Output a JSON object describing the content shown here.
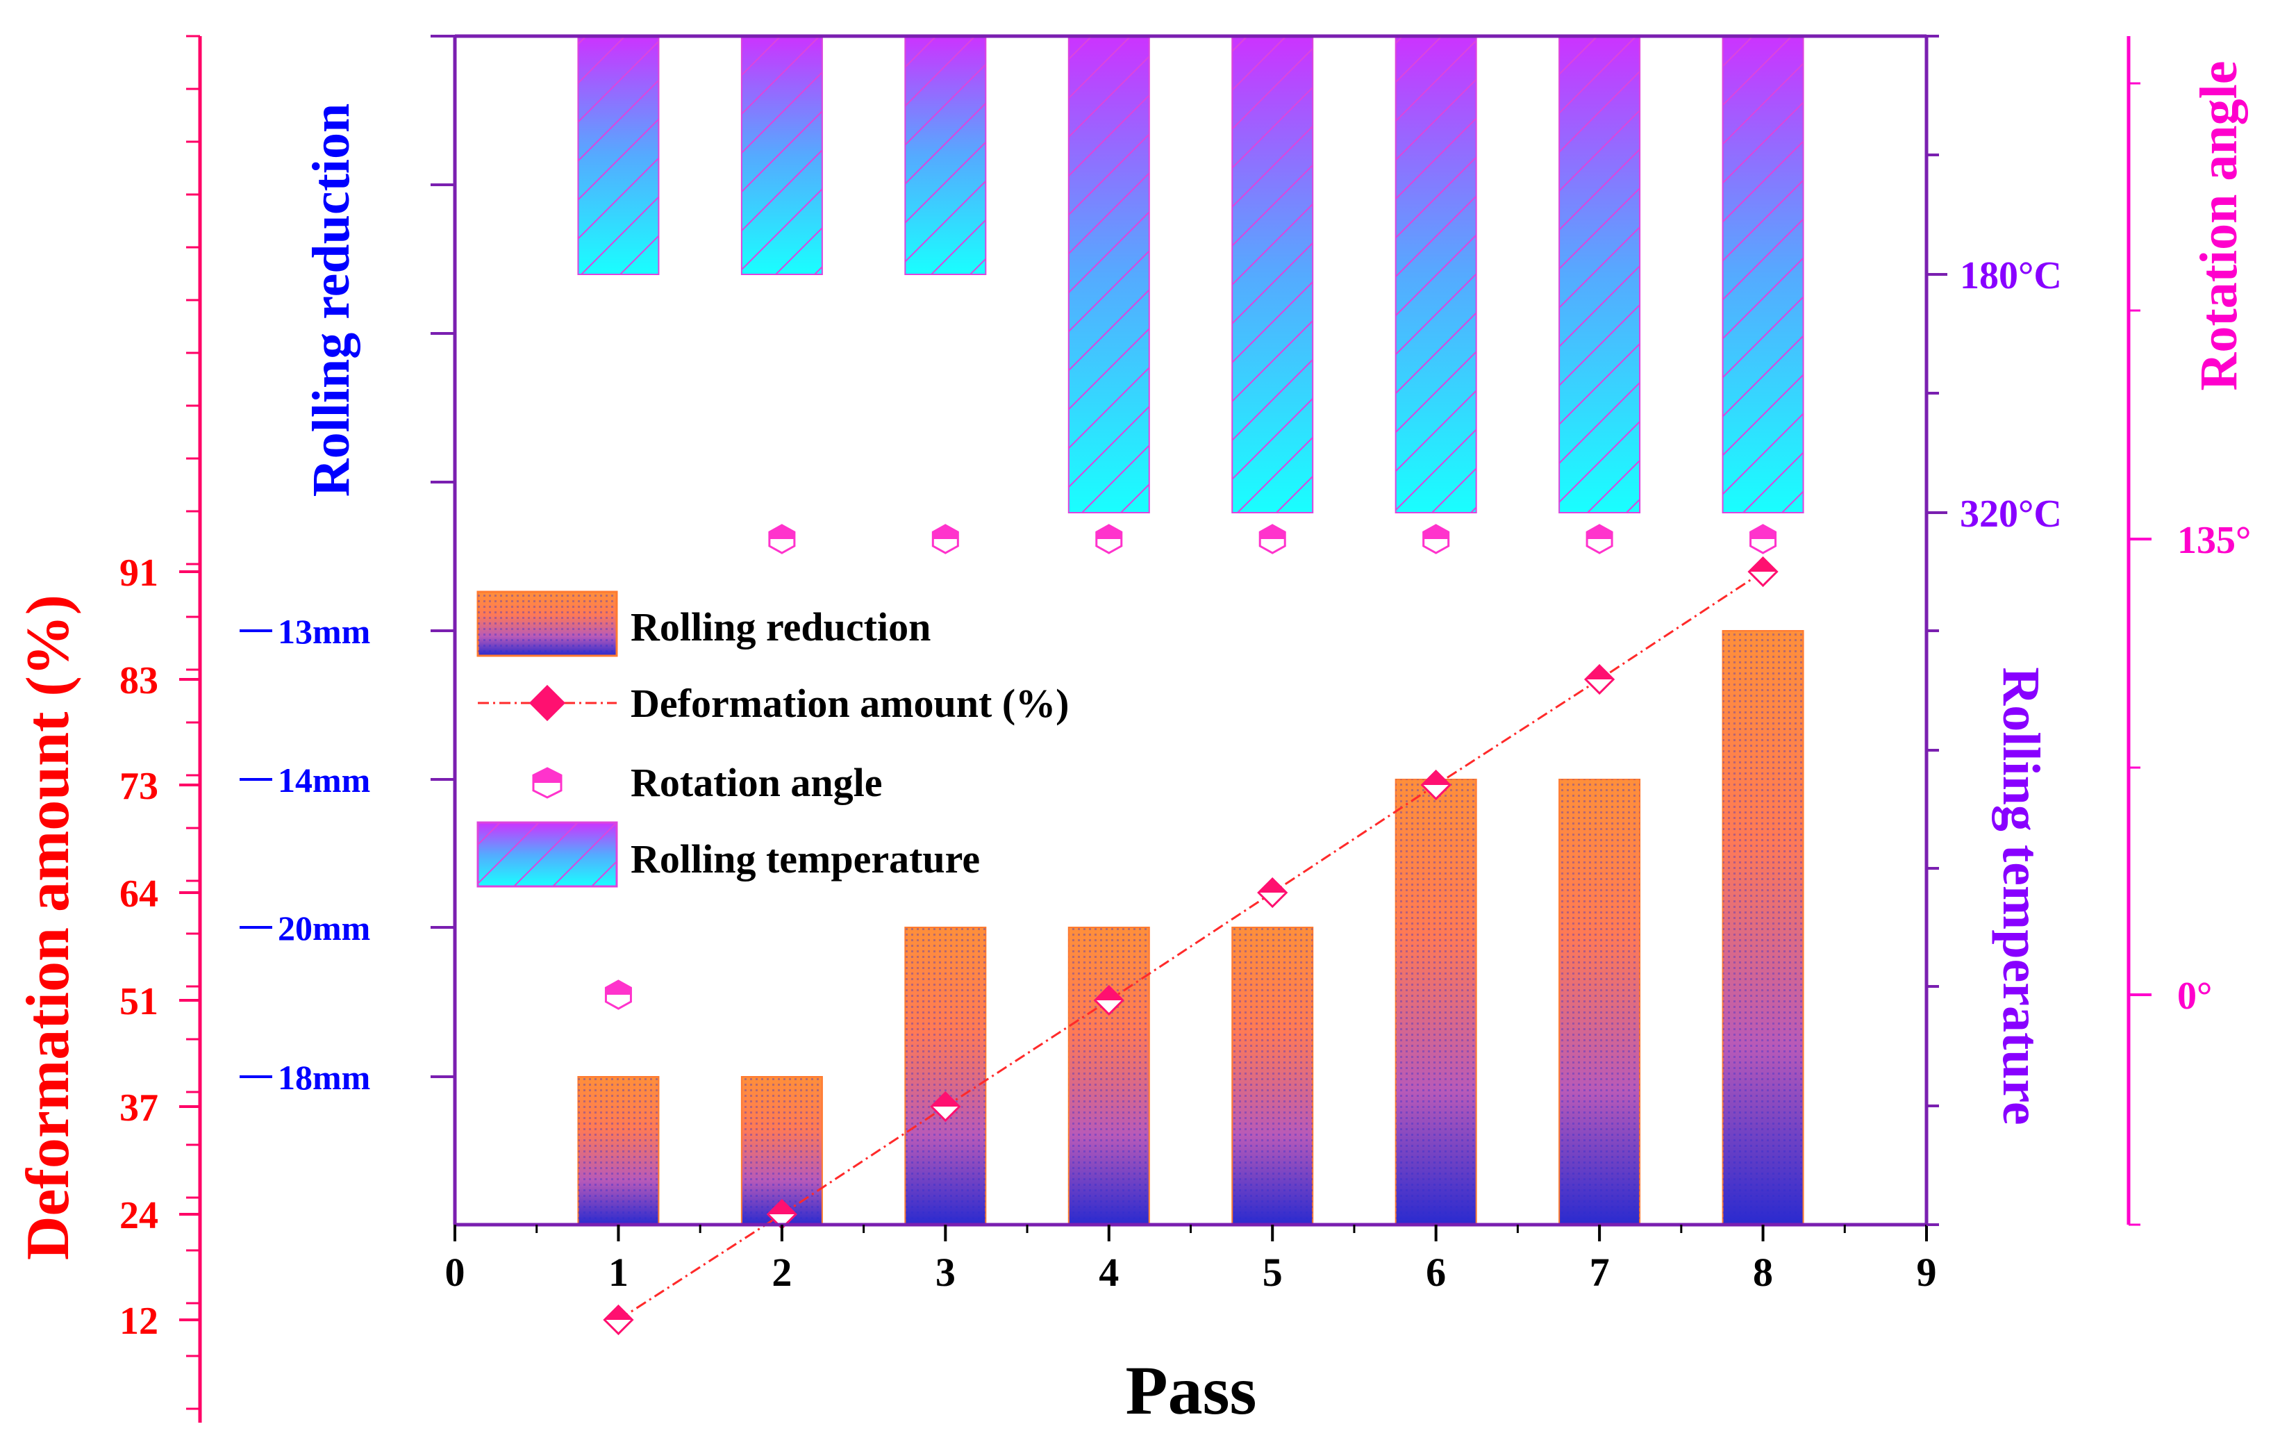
{
  "colors": {
    "deformation": "#ff0000",
    "reduction": "#0000ff",
    "temperature": "#8800ff",
    "rotation": "#ff00cc",
    "frame": "#7a1fb0",
    "bar_top": "#ff8f3a",
    "bar_bottom": "#2a2acf",
    "temp_top": "#cc33ff",
    "temp_bottom": "#19ffff",
    "marker": "#ff1070"
  },
  "chart_data": {
    "type": "bar",
    "title": "",
    "xlabel": "Pass",
    "x": [
      1,
      2,
      3,
      4,
      5,
      6,
      7,
      8
    ],
    "xlim": [
      0,
      9
    ],
    "x_ticks": [
      "0",
      "1",
      "2",
      "3",
      "4",
      "5",
      "6",
      "7",
      "8",
      "9"
    ],
    "grid": false,
    "legend_position": "center-left",
    "series": [
      {
        "name": "Rolling reduction",
        "kind": "bar",
        "axis": "Rolling reduction",
        "tick_labels": [
          "18mm",
          "20mm",
          "14mm",
          "13mm"
        ],
        "values": [
          1,
          1,
          2,
          2,
          2,
          3,
          3,
          4
        ],
        "value_labels": [
          "18mm",
          "18mm",
          "20mm",
          "20mm",
          "20mm",
          "14mm",
          "14mm",
          "13mm"
        ]
      },
      {
        "name": "Deformation amount (%)",
        "kind": "line",
        "axis": "Deformation amount (%)",
        "tick_labels": [
          "12",
          "24",
          "37",
          "51",
          "64",
          "73",
          "83",
          "91"
        ],
        "values": [
          12,
          24,
          37,
          51,
          64,
          73,
          83,
          91
        ]
      },
      {
        "name": "Rotation angle",
        "kind": "scatter",
        "axis": "Rotation angle",
        "tick_labels": [
          "0°",
          "135°"
        ],
        "values": [
          0,
          135,
          135,
          135,
          135,
          135,
          135,
          135
        ],
        "value_labels": [
          "0°",
          "135°",
          "135°",
          "135°",
          "135°",
          "135°",
          "135°",
          "135°"
        ]
      },
      {
        "name": "Rolling temperature",
        "kind": "bar",
        "axis": "Rolling temperature",
        "tick_labels": [
          "180°C",
          "320°C"
        ],
        "values": [
          180,
          180,
          180,
          320,
          320,
          320,
          320,
          320
        ],
        "value_labels": [
          "180°C",
          "180°C",
          "180°C",
          "320°C",
          "320°C",
          "320°C",
          "320°C",
          "320°C"
        ]
      }
    ],
    "axes": {
      "deformation": {
        "label": "Deformation amount (%)",
        "ticks": [
          "12",
          "24",
          "37",
          "51",
          "64",
          "73",
          "83",
          "91"
        ]
      },
      "reduction": {
        "label": "Rolling reduction",
        "ticks": [
          "18mm",
          "20mm",
          "14mm",
          "13mm"
        ]
      },
      "temperature": {
        "label": "Rolling temperature",
        "ticks": [
          "180°C",
          "320°C"
        ]
      },
      "rotation": {
        "label": "Rotation angle",
        "ticks": [
          "0°",
          "135°"
        ]
      }
    }
  }
}
